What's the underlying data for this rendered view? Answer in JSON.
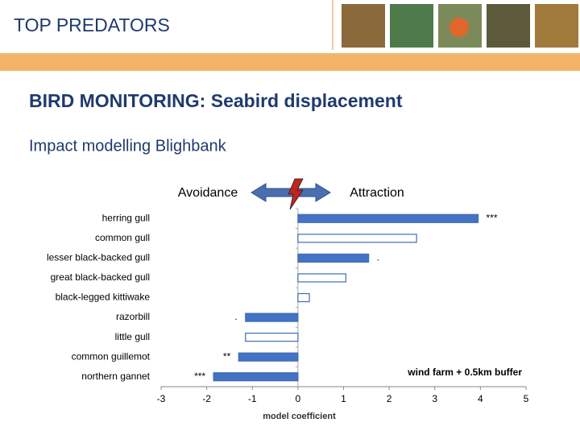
{
  "header": {
    "title": "TOP PREDATORS"
  },
  "slide": {
    "title": "BIRD MONITORING: Seabird displacement",
    "subtitle": "Impact modelling Blighbank",
    "left_label": "Avoidance",
    "right_label": "Attraction"
  },
  "chart_data": {
    "type": "hbar",
    "categories": [
      "herring gull",
      "common gull",
      "lesser black-backed gull",
      "great black-backed gull",
      "black-legged kittiwake",
      "razorbill",
      "little gull",
      "common guillemot",
      "northern gannet"
    ],
    "series": [
      {
        "name": "wind farm + 0.5km buffer",
        "color": "#3e6db5",
        "fills": [
          "#4472c4",
          "#ffffff",
          "#4472c4",
          "#ffffff",
          "#ffffff",
          "#4472c4",
          "#ffffff",
          "#4472c4",
          "#4472c4"
        ],
        "values": [
          3.95,
          2.6,
          1.55,
          1.05,
          0.25,
          -1.15,
          -1.15,
          -1.3,
          -1.85
        ],
        "value_labels": [
          "***",
          null,
          ".",
          null,
          null,
          ".",
          null,
          "**",
          "***"
        ]
      }
    ],
    "xlabel": "model coefficient",
    "xlim": [
      -3,
      5
    ],
    "xticks": [
      -3,
      -2,
      -1,
      0,
      1,
      2,
      3,
      4,
      5
    ]
  }
}
